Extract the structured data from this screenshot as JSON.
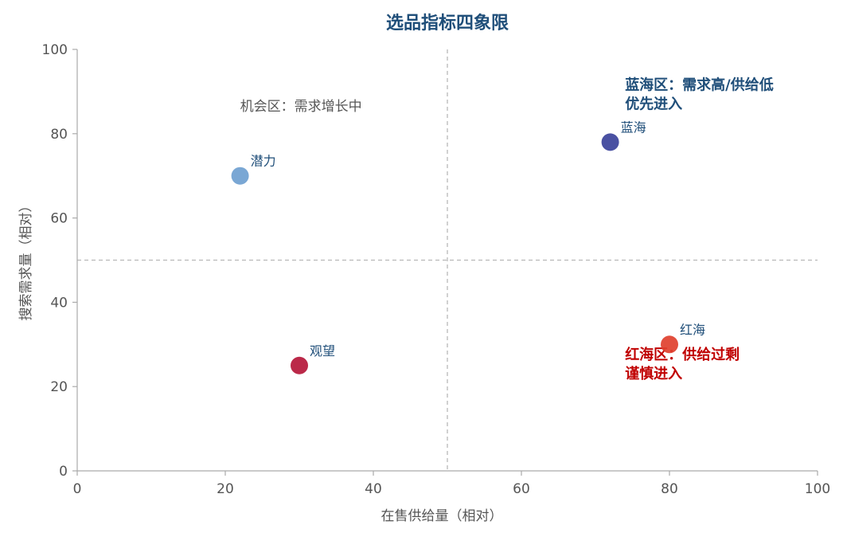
{
  "chart_data": {
    "type": "scatter",
    "title": "选品指标四象限",
    "xlabel": "在售供给量（相对）",
    "ylabel": "搜索需求量（相对）",
    "xlim": [
      0,
      100
    ],
    "ylim": [
      0,
      100
    ],
    "xticks": [
      "0",
      "20",
      "40",
      "60",
      "80",
      "100"
    ],
    "yticks": [
      "0",
      "20",
      "40",
      "60",
      "80",
      "100"
    ],
    "grid": false,
    "divider_x": 50,
    "divider_y": 50,
    "points": [
      {
        "label": "潜力",
        "x": 22,
        "y": 70,
        "color": "#6f9fd0"
      },
      {
        "label": "蓝海",
        "x": 72,
        "y": 78,
        "color": "#3b429a"
      },
      {
        "label": "观望",
        "x": 30,
        "y": 25,
        "color": "#b5173a"
      },
      {
        "label": "红海",
        "x": 80,
        "y": 30,
        "color": "#e0402e"
      }
    ],
    "annotations": [
      {
        "kind": "gray",
        "x": 22,
        "y": 87,
        "lines": [
          "机会区：需求增长中"
        ]
      },
      {
        "kind": "blue",
        "x": 74,
        "y": 92,
        "lines": [
          "蓝海区：需求高/供给低",
          "优先进入"
        ]
      },
      {
        "kind": "red",
        "x": 74,
        "y": 28,
        "lines": [
          "红海区：供给过剩",
          "谨慎进入"
        ]
      }
    ]
  }
}
